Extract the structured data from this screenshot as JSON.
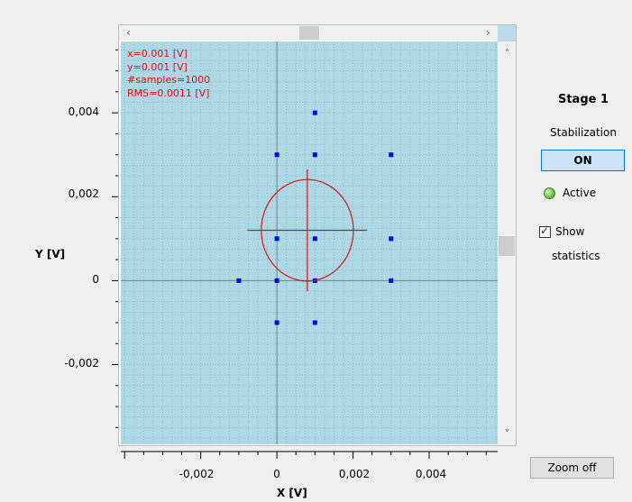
{
  "plot": {
    "y_axis_title": "Y [V]",
    "x_axis_title": "X [V]",
    "y_ticks": [
      "0,004",
      "0,002",
      "0",
      "-0,002"
    ],
    "x_ticks": [
      "-0,002",
      "0",
      "0,002",
      "0,004"
    ],
    "stats": {
      "x": "x=0.001 [V]",
      "y": "y=0.001 [V]",
      "samples": "#samples=1000",
      "rms": "RMS=0.0011 [V]"
    },
    "colors": {
      "background": "#add8e6",
      "points": "#0000ff",
      "marker": "#e01010",
      "axis": "#808080"
    }
  },
  "chart_data": {
    "type": "scatter",
    "xlabel": "X [V]",
    "ylabel": "Y [V]",
    "xlim": [
      -0.0041,
      0.0058
    ],
    "ylim": [
      -0.0039,
      0.0057
    ],
    "grid": true,
    "points": [
      {
        "x": 0.001,
        "y": 0.004
      },
      {
        "x": 0.0,
        "y": 0.003
      },
      {
        "x": 0.001,
        "y": 0.003
      },
      {
        "x": 0.003,
        "y": 0.003
      },
      {
        "x": 0.0,
        "y": 0.001
      },
      {
        "x": 0.001,
        "y": 0.001
      },
      {
        "x": 0.003,
        "y": 0.001
      },
      {
        "x": -0.001,
        "y": 0.0
      },
      {
        "x": 0.0,
        "y": 0.0
      },
      {
        "x": 0.001,
        "y": 0.0
      },
      {
        "x": 0.003,
        "y": 0.0
      },
      {
        "x": 0.0,
        "y": -0.001
      },
      {
        "x": 0.001,
        "y": -0.001
      }
    ],
    "crosshair": {
      "x": 0.0008,
      "y": 0.0012,
      "rms": 0.0011
    }
  },
  "panel": {
    "stage_title": "Stage 1",
    "stabilization_label": "Stabilization",
    "stabilization_button": "ON",
    "active_label": "Active",
    "show_label": "Show",
    "statistics_label": "statistics",
    "show_statistics_checked": true,
    "zoom_button": "Zoom off"
  },
  "scrollbars": {
    "left_arrow": "‹",
    "right_arrow": "›",
    "up_arrow": "˄",
    "down_arrow": "˅"
  }
}
